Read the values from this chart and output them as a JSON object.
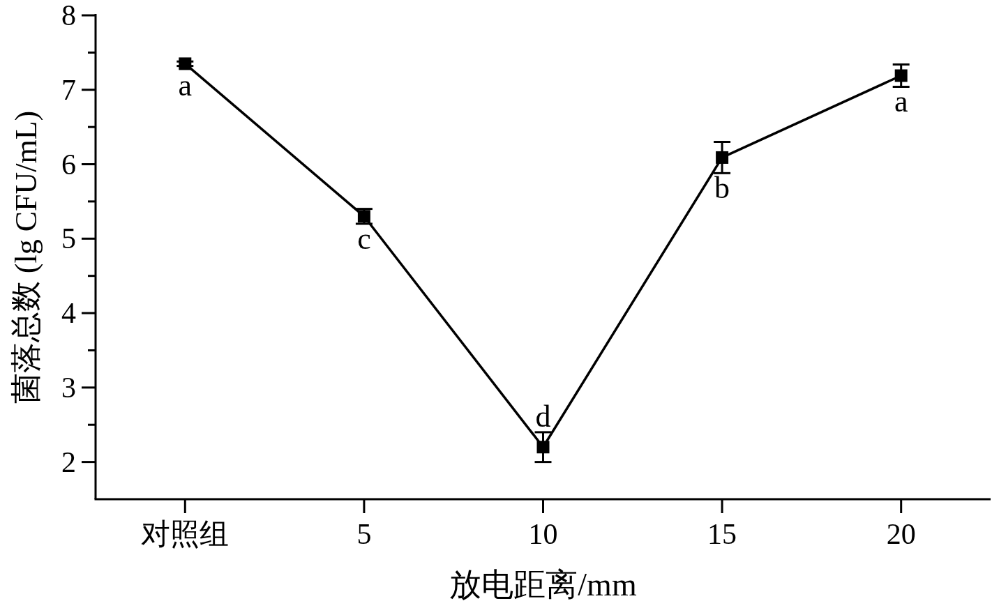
{
  "chart_data": {
    "type": "line",
    "xlabel": "放电距离/mm",
    "ylabel": "菌落总数 (lg CFU/mL)",
    "categories": [
      "对照组",
      "5",
      "10",
      "15",
      "20"
    ],
    "values": [
      7.35,
      5.3,
      2.2,
      6.09,
      7.19
    ],
    "errors": [
      0.03,
      0.1,
      0.2,
      0.21,
      0.15
    ],
    "color": "#000000",
    "marker": "square",
    "line_style": "solid",
    "ylim": [
      1.5,
      8
    ],
    "yticks": [
      2,
      3,
      4,
      5,
      6,
      7,
      8
    ],
    "annotations": [
      {
        "text": "a",
        "x": "对照组",
        "y": 7.35
      },
      {
        "text": "c",
        "x": "5",
        "y": 5.3
      },
      {
        "text": "d",
        "x": "10",
        "y": 2.2
      },
      {
        "text": "b",
        "x": "15",
        "y": 6.09
      },
      {
        "text": "a",
        "x": "20",
        "y": 7.19
      }
    ]
  }
}
